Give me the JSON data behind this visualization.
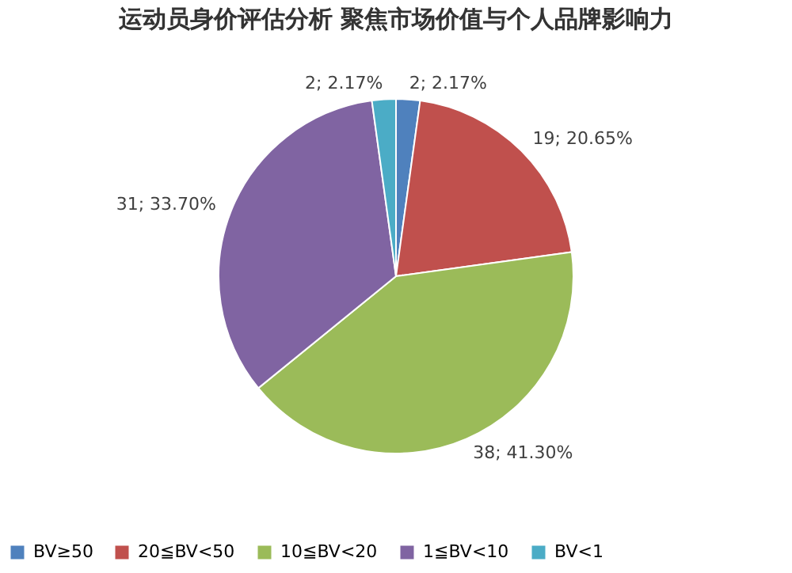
{
  "chart_data": {
    "type": "pie",
    "title": "运动员身价评估分析 聚焦市场价值与个人品牌影响力",
    "categories": [
      "BV≥50",
      "20≦BV<50",
      "10≦BV<20",
      "1≦BV<10",
      "BV<1"
    ],
    "values": [
      2,
      19,
      38,
      31,
      2
    ],
    "colors": [
      "#4f81bd",
      "#c0504d",
      "#9bbb59",
      "#8064a2",
      "#4bacc6"
    ],
    "value_labels": [
      "2; 2.17%",
      "19; 20.65%",
      "38; 41.30%",
      "31; 33.70%",
      "2; 2.17%"
    ],
    "legend": "bottom"
  }
}
